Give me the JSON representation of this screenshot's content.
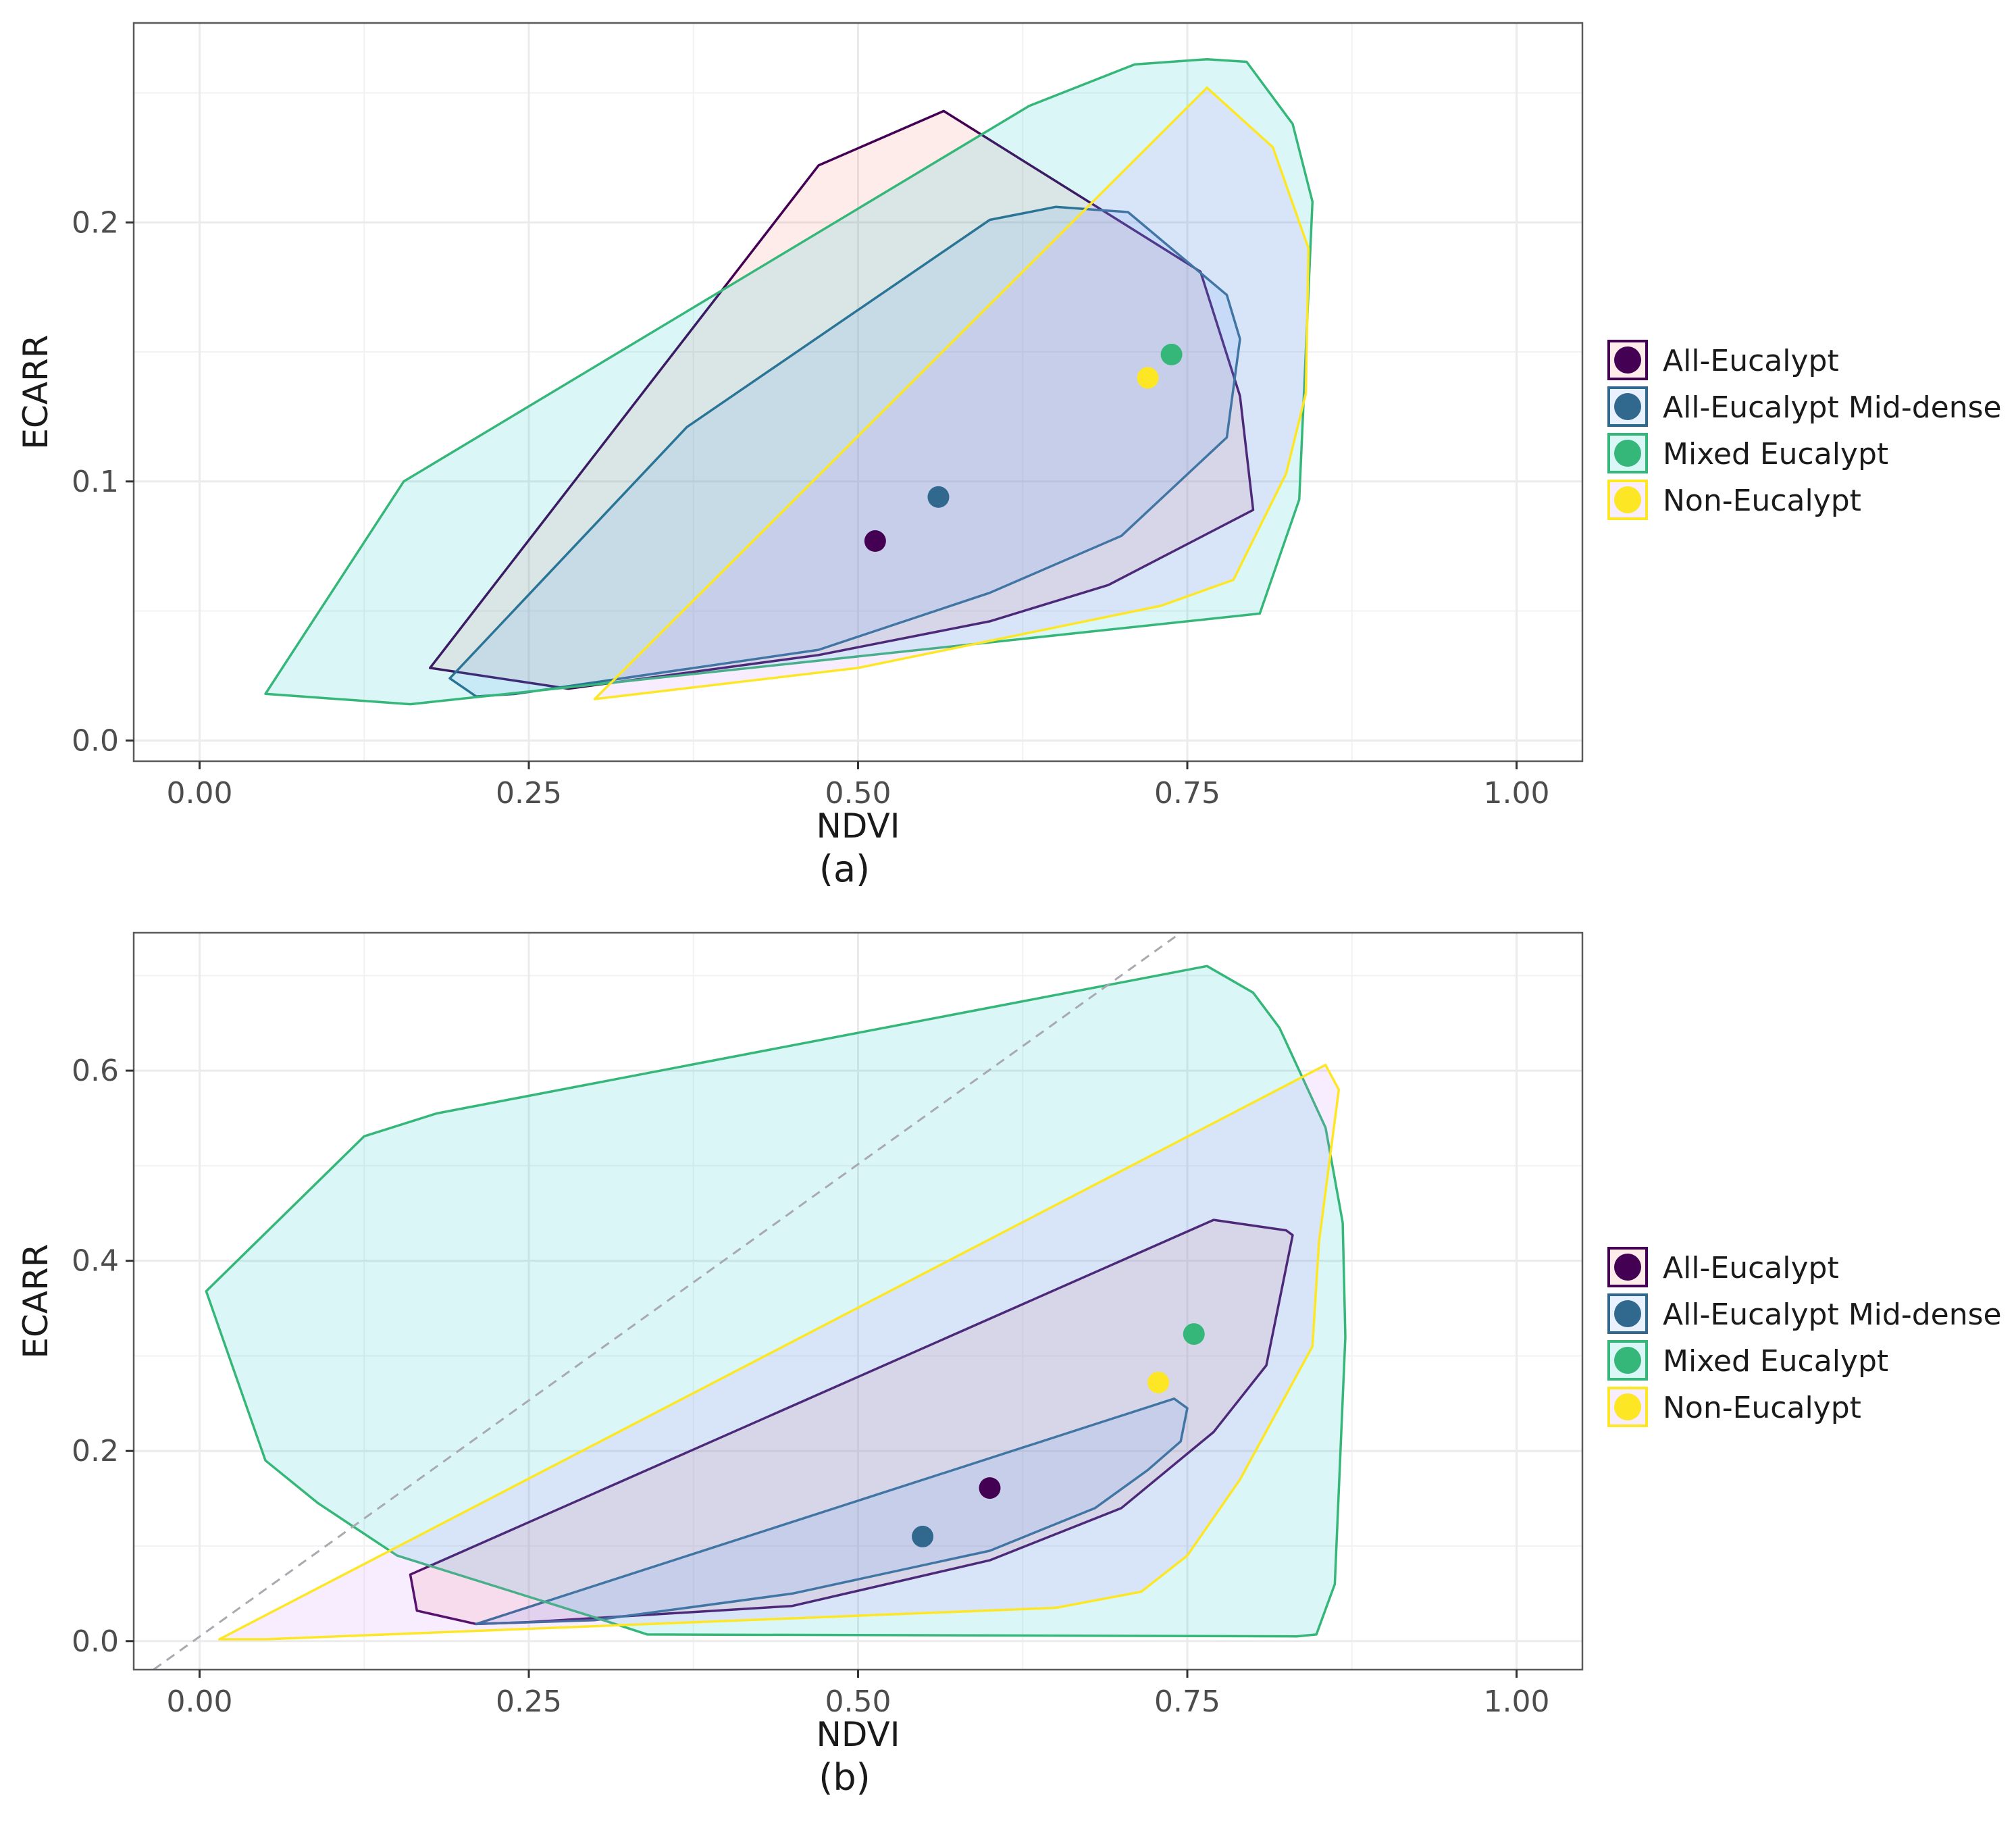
{
  "chart_data": [
    {
      "type": "scatter",
      "panel_label": "(a)",
      "xlabel": "NDVI",
      "ylabel": "ECARR",
      "xlim": [
        -0.05,
        1.05
      ],
      "ylim": [
        -0.008,
        0.277
      ],
      "xticks": [
        0.0,
        0.25,
        0.5,
        0.75,
        1.0
      ],
      "xtick_labels": [
        "0.00",
        "0.25",
        "0.50",
        "0.75",
        "1.00"
      ],
      "yticks": [
        0.0,
        0.1,
        0.2
      ],
      "ytick_labels": [
        "0.0",
        "0.1",
        "0.2"
      ],
      "grid": true,
      "legend_position": "right",
      "series": [
        {
          "name": "All-Eucalypt",
          "color": "#440154",
          "fill": "#f8766d",
          "centroid": [
            0.513,
            0.077
          ],
          "hull": [
            [
              0.175,
              0.028
            ],
            [
              0.47,
              0.222
            ],
            [
              0.565,
              0.243
            ],
            [
              0.76,
              0.181
            ],
            [
              0.79,
              0.133
            ],
            [
              0.8,
              0.089
            ],
            [
              0.69,
              0.06
            ],
            [
              0.6,
              0.046
            ],
            [
              0.47,
              0.033
            ],
            [
              0.28,
              0.02
            ]
          ]
        },
        {
          "name": "All-Eucalypt Mid-dense",
          "color": "#31688e",
          "fill": "#619cff",
          "centroid": [
            0.561,
            0.094
          ],
          "hull": [
            [
              0.19,
              0.024
            ],
            [
              0.37,
              0.121
            ],
            [
              0.6,
              0.201
            ],
            [
              0.65,
              0.206
            ],
            [
              0.705,
              0.204
            ],
            [
              0.78,
              0.172
            ],
            [
              0.79,
              0.155
            ],
            [
              0.78,
              0.117
            ],
            [
              0.7,
              0.079
            ],
            [
              0.6,
              0.057
            ],
            [
              0.47,
              0.035
            ],
            [
              0.24,
              0.018
            ],
            [
              0.21,
              0.017
            ]
          ]
        },
        {
          "name": "Mixed Eucalypt",
          "color": "#35b779",
          "fill": "#00bfc4",
          "centroid": [
            0.738,
            0.149
          ],
          "hull": [
            [
              0.05,
              0.018
            ],
            [
              0.155,
              0.1
            ],
            [
              0.63,
              0.245
            ],
            [
              0.71,
              0.261
            ],
            [
              0.765,
              0.263
            ],
            [
              0.795,
              0.262
            ],
            [
              0.83,
              0.238
            ],
            [
              0.845,
              0.208
            ],
            [
              0.835,
              0.093
            ],
            [
              0.805,
              0.049
            ],
            [
              0.16,
              0.014
            ]
          ]
        },
        {
          "name": "Non-Eucalypt",
          "color": "#fde725",
          "fill": "#c77cff",
          "centroid": [
            0.72,
            0.14
          ],
          "hull": [
            [
              0.3,
              0.016
            ],
            [
              0.765,
              0.252
            ],
            [
              0.815,
              0.229
            ],
            [
              0.842,
              0.19
            ],
            [
              0.84,
              0.134
            ],
            [
              0.825,
              0.103
            ],
            [
              0.785,
              0.062
            ],
            [
              0.73,
              0.052
            ],
            [
              0.5,
              0.028
            ]
          ]
        }
      ]
    },
    {
      "type": "scatter",
      "panel_label": "(b)",
      "xlabel": "NDVI",
      "ylabel": "ECARR",
      "xlim": [
        -0.05,
        1.05
      ],
      "ylim": [
        -0.03,
        0.745
      ],
      "xticks": [
        0.0,
        0.25,
        0.5,
        0.75,
        1.0
      ],
      "xtick_labels": [
        "0.00",
        "0.25",
        "0.50",
        "0.75",
        "1.00"
      ],
      "yticks": [
        0.0,
        0.2,
        0.4,
        0.6
      ],
      "ytick_labels": [
        "0.0",
        "0.2",
        "0.4",
        "0.6"
      ],
      "grid": true,
      "legend_position": "right",
      "reference_line": {
        "style": "dashed",
        "x": [
          -0.035,
          0.745
        ],
        "y": [
          -0.03,
          0.745
        ]
      },
      "series": [
        {
          "name": "All-Eucalypt",
          "color": "#440154",
          "fill": "#f8766d",
          "centroid": [
            0.6,
            0.161
          ],
          "hull": [
            [
              0.16,
              0.07
            ],
            [
              0.77,
              0.443
            ],
            [
              0.825,
              0.432
            ],
            [
              0.83,
              0.427
            ],
            [
              0.81,
              0.29
            ],
            [
              0.77,
              0.22
            ],
            [
              0.7,
              0.14
            ],
            [
              0.6,
              0.085
            ],
            [
              0.45,
              0.037
            ],
            [
              0.25,
              0.02
            ],
            [
              0.21,
              0.018
            ],
            [
              0.165,
              0.032
            ]
          ]
        },
        {
          "name": "All-Eucalypt Mid-dense",
          "color": "#31688e",
          "fill": "#619cff",
          "centroid": [
            0.549,
            0.11
          ],
          "hull": [
            [
              0.21,
              0.018
            ],
            [
              0.74,
              0.255
            ],
            [
              0.75,
              0.245
            ],
            [
              0.745,
              0.21
            ],
            [
              0.72,
              0.18
            ],
            [
              0.68,
              0.14
            ],
            [
              0.6,
              0.095
            ],
            [
              0.45,
              0.05
            ],
            [
              0.3,
              0.022
            ]
          ]
        },
        {
          "name": "Mixed Eucalypt",
          "color": "#35b779",
          "fill": "#00bfc4",
          "centroid": [
            0.755,
            0.323
          ],
          "hull": [
            [
              0.005,
              0.368
            ],
            [
              0.125,
              0.531
            ],
            [
              0.18,
              0.555
            ],
            [
              0.765,
              0.71
            ],
            [
              0.8,
              0.682
            ],
            [
              0.82,
              0.645
            ],
            [
              0.855,
              0.54
            ],
            [
              0.868,
              0.44
            ],
            [
              0.87,
              0.32
            ],
            [
              0.862,
              0.06
            ],
            [
              0.848,
              0.007
            ],
            [
              0.833,
              0.005
            ],
            [
              0.34,
              0.007
            ],
            [
              0.3,
              0.025
            ],
            [
              0.15,
              0.09
            ],
            [
              0.09,
              0.145
            ],
            [
              0.05,
              0.19
            ]
          ]
        },
        {
          "name": "Non-Eucalypt",
          "color": "#fde725",
          "fill": "#c77cff",
          "centroid": [
            0.728,
            0.272
          ],
          "hull": [
            [
              0.015,
              0.002
            ],
            [
              0.855,
              0.606
            ],
            [
              0.865,
              0.58
            ],
            [
              0.85,
              0.42
            ],
            [
              0.845,
              0.31
            ],
            [
              0.79,
              0.17
            ],
            [
              0.75,
              0.09
            ],
            [
              0.715,
              0.052
            ],
            [
              0.65,
              0.035
            ],
            [
              0.05,
              0.002
            ]
          ]
        }
      ]
    }
  ]
}
